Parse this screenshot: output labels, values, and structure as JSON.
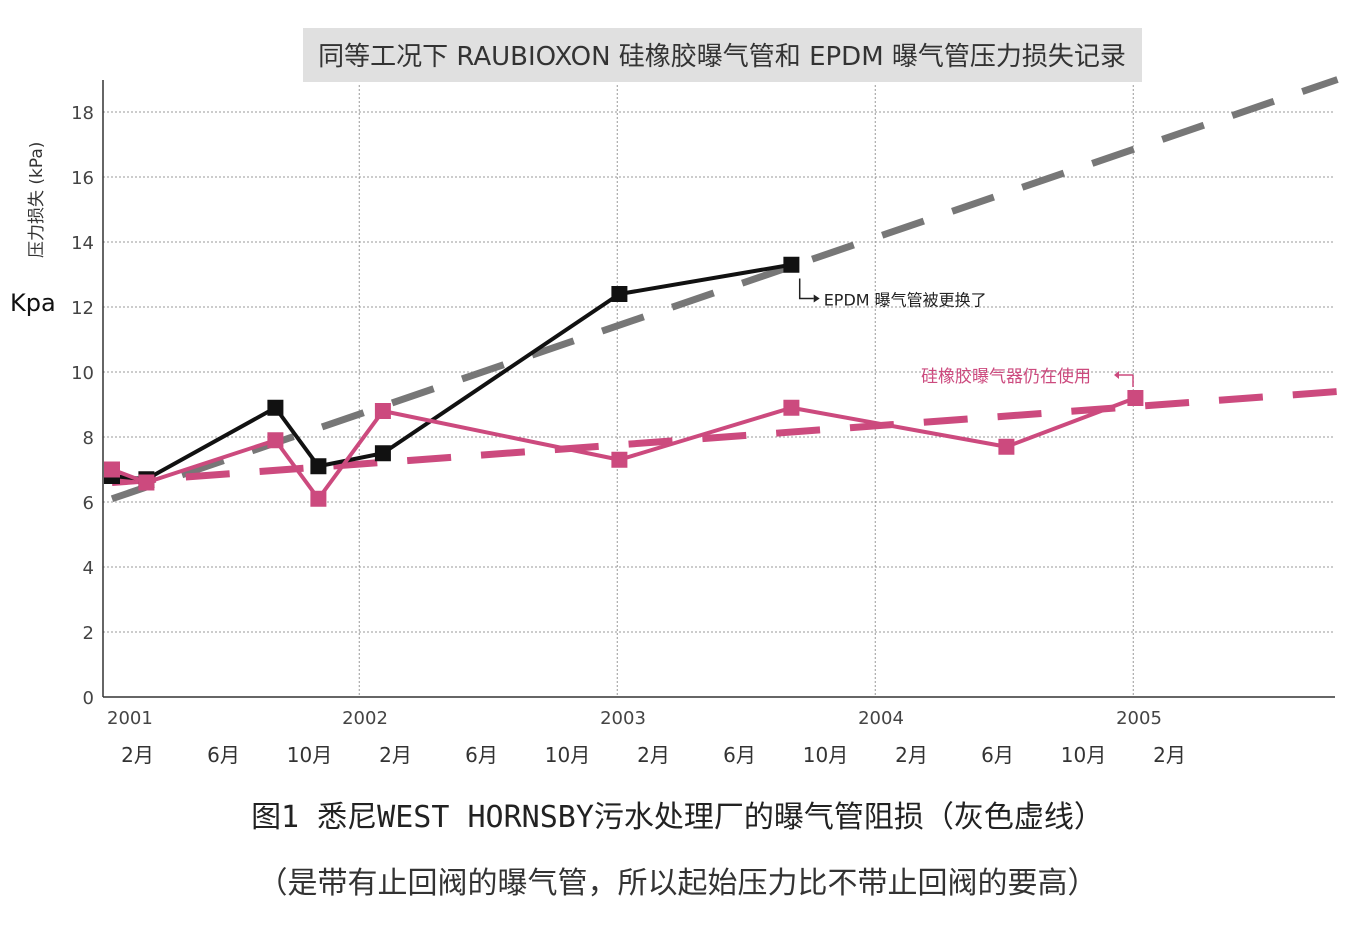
{
  "chart_data": {
    "type": "line",
    "title": "同等工况下 RAUBIOXON 硅橡胶曝气管和 EPDM 曝气管压力损失记录",
    "ylabel": "压力损失 (kPa)",
    "yunit": "Kpa",
    "ylim": [
      0,
      19
    ],
    "yticks": [
      0,
      2,
      4,
      6,
      8,
      10,
      12,
      14,
      16,
      18
    ],
    "year_labels": [
      {
        "label": "2001",
        "at": 0
      },
      {
        "label": "2002",
        "at": 12
      },
      {
        "label": "2003",
        "at": 24
      },
      {
        "label": "2004",
        "at": 36
      },
      {
        "label": "2005",
        "at": 48
      }
    ],
    "month_labels": [
      {
        "label": "2月",
        "at": 1
      },
      {
        "label": "6月",
        "at": 5
      },
      {
        "label": "10月",
        "at": 9
      },
      {
        "label": "2月",
        "at": 13
      },
      {
        "label": "6月",
        "at": 17
      },
      {
        "label": "10月",
        "at": 21
      },
      {
        "label": "2月",
        "at": 25
      },
      {
        "label": "6月",
        "at": 29
      },
      {
        "label": "10月",
        "at": 33
      },
      {
        "label": "2月",
        "at": 37
      },
      {
        "label": "6月",
        "at": 41
      },
      {
        "label": "10月",
        "at": 45
      },
      {
        "label": "2月",
        "at": 49
      }
    ],
    "xlim": [
      0,
      57
    ],
    "year_separators": [
      11.5,
      23.5,
      35.5,
      47.5
    ],
    "grid": true,
    "series": [
      {
        "kind": "measured",
        "color": "#111111",
        "points": [
          [
            0,
            6.8
          ],
          [
            1.6,
            6.7
          ],
          [
            7.6,
            8.9
          ],
          [
            9.6,
            7.1
          ],
          [
            12.6,
            7.5
          ],
          [
            23.6,
            12.4
          ],
          [
            31.6,
            13.3
          ]
        ]
      },
      {
        "kind": "measured",
        "color": "#cc4a7e",
        "points": [
          [
            0,
            7.0
          ],
          [
            1.6,
            6.6
          ],
          [
            7.6,
            7.9
          ],
          [
            9.6,
            6.1
          ],
          [
            12.6,
            8.8
          ],
          [
            23.6,
            7.3
          ],
          [
            31.6,
            8.9
          ],
          [
            41.6,
            7.7
          ],
          [
            47.6,
            9.2
          ]
        ]
      },
      {
        "kind": "trend",
        "color": "#777777",
        "points": [
          [
            0,
            6.1
          ],
          [
            57,
            19.0
          ]
        ]
      },
      {
        "kind": "trend",
        "color": "#cc4a7e",
        "points": [
          [
            0,
            6.6
          ],
          [
            57,
            9.4
          ]
        ]
      }
    ],
    "annotations": [
      {
        "text": "EPDM 曝气管被更换了",
        "at": [
          32.4,
          12.5
        ],
        "arrow_from": [
          31.8,
          13.0
        ],
        "color": "#222222"
      },
      {
        "text": "硅橡胶曝气器仍在使用",
        "at": [
          38.0,
          9.8
        ],
        "arrow_to": [
          48.2,
          9.8
        ],
        "color": "#cc4a7e"
      }
    ]
  },
  "caption": {
    "main": "图1 悉尼WEST HORNSBY污水处理厂的曝气管阻损（灰色虚线）",
    "sub": "（是带有止回阀的曝气管，所以起始压力比不带止回阀的要高）"
  }
}
